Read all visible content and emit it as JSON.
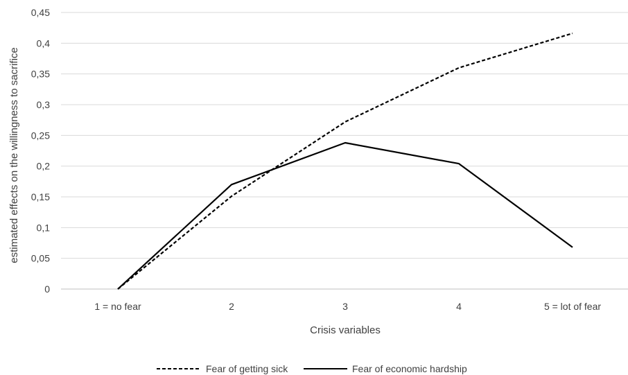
{
  "chart_data": {
    "type": "line",
    "title": "",
    "xlabel": "Crisis variables",
    "ylabel": "estimated effects on the willingness to sacrifice",
    "categories": [
      "1 = no fear",
      "2",
      "3",
      "4",
      "5 = lot of fear"
    ],
    "ylim": [
      0,
      0.45
    ],
    "yticks": [
      "0",
      "0,05",
      "0,1",
      "0,15",
      "0,2",
      "0,25",
      "0,3",
      "0,35",
      "0,4",
      "0,45"
    ],
    "grid": true,
    "legend_position": "bottom",
    "series": [
      {
        "name": "Fear of getting sick",
        "style": "dashed",
        "color": "#000000",
        "values": [
          0,
          0.151,
          0.272,
          0.36,
          0.416
        ]
      },
      {
        "name": "Fear of economic hardship",
        "style": "solid",
        "color": "#000000",
        "values": [
          0,
          0.17,
          0.238,
          0.204,
          0.068
        ]
      }
    ]
  }
}
